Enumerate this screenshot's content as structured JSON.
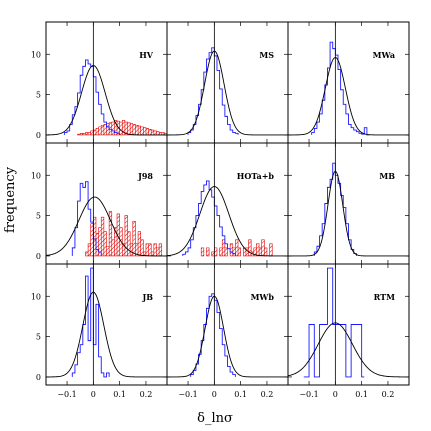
{
  "chart_data": {
    "type": "histogram-grid",
    "xlabel": "δ_lnσ",
    "ylabel": "frequency",
    "xlim": [
      -0.18,
      0.28
    ],
    "ylim": [
      -1,
      14
    ],
    "xticks": [
      -0.1,
      0,
      0.1,
      0.2
    ],
    "xtick_labels": [
      "−0.1",
      "0",
      "0.1",
      "0.2"
    ],
    "yticks": [
      0,
      5,
      10
    ],
    "ytick_labels": [
      "0",
      "5",
      "10"
    ],
    "bin_width": 0.01,
    "colors": {
      "primary": "#1a1aff",
      "secondary": "#e00000",
      "fit": "#000000"
    },
    "panels": [
      {
        "label": "HV",
        "hist_start": -0.11,
        "hist": [
          0.3,
          0.5,
          1.3,
          2.5,
          3.5,
          5.2,
          7.4,
          8.5,
          9.3,
          8.8,
          8.5,
          7.2,
          5.3,
          3.8,
          2.6,
          1.6,
          1.0,
          0.7,
          0.5,
          0.3,
          0.2
        ],
        "fit": {
          "mean": 0.0,
          "sigma": 0.045,
          "peak": 8.6
        },
        "secondary_start": -0.06,
        "secondary": [
          0.1,
          0.2,
          0.2,
          0.3,
          0.3,
          0.5,
          0.6,
          0.8,
          1.0,
          1.2,
          1.3,
          1.4,
          1.5,
          1.6,
          1.8,
          1.7,
          1.6,
          1.8,
          1.6,
          1.5,
          1.4,
          1.3,
          1.2,
          1.1,
          1.0,
          0.9,
          0.8,
          0.7,
          0.6,
          0.5,
          0.4,
          0.3,
          0.3,
          0.2
        ]
      },
      {
        "label": "MS",
        "hist_start": -0.1,
        "hist": [
          0.3,
          0.6,
          1.3,
          2.4,
          3.8,
          5.6,
          7.8,
          9.4,
          10.2,
          10.8,
          9.8,
          8.0,
          5.7,
          3.7,
          2.3,
          1.3,
          0.6,
          0.3,
          0.2
        ],
        "fit": {
          "mean": 0.0,
          "sigma": 0.037,
          "peak": 10.4
        }
      },
      {
        "label": "MWa",
        "hist_start": -0.09,
        "hist": [
          0.3,
          0.8,
          1.6,
          2.6,
          4.3,
          6.2,
          8.3,
          11.5,
          10.7,
          9.9,
          8.1,
          5.6,
          3.8,
          2.6,
          1.3,
          0.9,
          0.6,
          0.4,
          0.2,
          0.1,
          0.9,
          0.0
        ],
        "fit": {
          "mean": 0.0,
          "sigma": 0.038,
          "peak": 9.6
        }
      },
      {
        "label": "J98",
        "hist_start": -0.08,
        "hist": [
          1.0,
          3.5,
          6.8,
          9.0,
          8.5,
          9.2,
          5.8,
          4.2,
          2.1,
          0.8,
          0.5
        ],
        "fit": {
          "mean": 0.005,
          "sigma": 0.06,
          "peak": 7.3
        },
        "secondary_start": -0.03,
        "secondary": [
          0.5,
          1.5,
          4.0,
          4.8,
          2.8,
          3.5,
          4.8,
          3.0,
          1.2,
          5.5,
          2.0,
          3.5,
          5.2,
          3.5,
          1.5,
          5.0,
          3.0,
          1.5,
          4.3,
          1.5,
          3.0,
          2.0,
          0.5,
          1.5,
          1.5,
          0.5,
          1.5,
          1.0,
          1.5
        ]
      },
      {
        "label": "HOTa+b",
        "hist_start": -0.12,
        "hist": [
          0.2,
          0.5,
          1.0,
          2.0,
          3.5,
          5.0,
          6.5,
          8.0,
          8.8,
          9.3,
          8.2,
          7.3,
          6.2,
          5.0,
          3.6,
          2.5,
          1.5,
          0.9,
          0.5,
          0.3
        ],
        "fit": {
          "mean": 0.0,
          "sigma": 0.055,
          "peak": 8.6
        },
        "secondary_start": -0.05,
        "secondary": [
          1.0,
          0.0,
          1.0,
          0.0,
          0.5,
          1.0,
          0.0,
          1.0,
          2.0,
          1.0,
          0.0,
          1.5,
          1.0,
          2.0,
          1.0,
          0.0,
          1.0,
          1.0,
          2.0,
          0.5,
          1.0,
          1.5,
          1.0,
          2.0,
          1.0,
          0.0,
          1.5
        ]
      },
      {
        "label": "MB",
        "hist_start": -0.08,
        "hist": [
          0.5,
          1.2,
          2.5,
          4.0,
          6.5,
          8.5,
          9.5,
          11.5,
          10.0,
          9.0,
          7.5,
          6.0,
          4.0,
          2.0,
          0.8,
          0.3
        ],
        "fit": {
          "mean": 0.0,
          "sigma": 0.028,
          "peak": 10.5
        }
      },
      {
        "label": "JB",
        "hist_start": -0.08,
        "hist": [
          0.5,
          1.5,
          3.0,
          4.0,
          6.5,
          12.5,
          4.5,
          13.5,
          4.0,
          9.0,
          2.5,
          0.5,
          0.0,
          0.5
        ],
        "fit": {
          "mean": 0.0,
          "sigma": 0.04,
          "peak": 10.5
        }
      },
      {
        "label": "MWb",
        "hist_start": -0.09,
        "hist": [
          0.3,
          0.8,
          1.6,
          2.8,
          4.5,
          6.5,
          8.5,
          10.0,
          10.3,
          9.5,
          8.0,
          6.0,
          4.0,
          2.6,
          1.3,
          0.6,
          0.3
        ],
        "fit": {
          "mean": 0.0,
          "sigma": 0.035,
          "peak": 10.0
        }
      },
      {
        "label": "RTM",
        "hist_start": -0.12,
        "hist": [
          0.0,
          0.0,
          6.5,
          6.5,
          0.0,
          0.0,
          6.5,
          6.5,
          6.5,
          13.5,
          13.5,
          6.5,
          6.5,
          6.5,
          6.5,
          6.5,
          0.0,
          0.0,
          6.5,
          6.5,
          6.5,
          6.5,
          0.0
        ],
        "fit": {
          "mean": 0.0,
          "sigma": 0.065,
          "peak": 6.7
        }
      }
    ]
  }
}
